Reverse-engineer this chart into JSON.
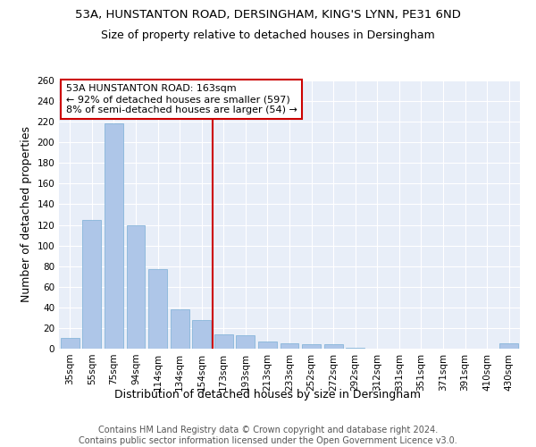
{
  "title_line1": "53A, HUNSTANTON ROAD, DERSINGHAM, KING'S LYNN, PE31 6ND",
  "title_line2": "Size of property relative to detached houses in Dersingham",
  "xlabel": "Distribution of detached houses by size in Dersingham",
  "ylabel": "Number of detached properties",
  "categories": [
    "35sqm",
    "55sqm",
    "75sqm",
    "94sqm",
    "114sqm",
    "134sqm",
    "154sqm",
    "173sqm",
    "193sqm",
    "213sqm",
    "233sqm",
    "252sqm",
    "272sqm",
    "292sqm",
    "312sqm",
    "331sqm",
    "351sqm",
    "371sqm",
    "391sqm",
    "410sqm",
    "430sqm"
  ],
  "values": [
    10,
    125,
    218,
    120,
    77,
    38,
    28,
    14,
    13,
    7,
    5,
    4,
    4,
    1,
    0,
    0,
    0,
    0,
    0,
    0,
    5
  ],
  "bar_color": "#aec6e8",
  "bar_edge_color": "#7aaed6",
  "vline_color": "#cc0000",
  "annotation_title": "53A HUNSTANTON ROAD: 163sqm",
  "annotation_line2": "← 92% of detached houses are smaller (597)",
  "annotation_line3": "8% of semi-detached houses are larger (54) →",
  "annotation_box_color": "#cc0000",
  "ylim": [
    0,
    260
  ],
  "yticks": [
    0,
    20,
    40,
    60,
    80,
    100,
    120,
    140,
    160,
    180,
    200,
    220,
    240,
    260
  ],
  "background_color": "#e8eef8",
  "footer_line1": "Contains HM Land Registry data © Crown copyright and database right 2024.",
  "footer_line2": "Contains public sector information licensed under the Open Government Licence v3.0.",
  "title_fontsize": 9.5,
  "subtitle_fontsize": 9,
  "axis_label_fontsize": 9,
  "tick_fontsize": 7.5,
  "annotation_fontsize": 8,
  "footer_fontsize": 7
}
